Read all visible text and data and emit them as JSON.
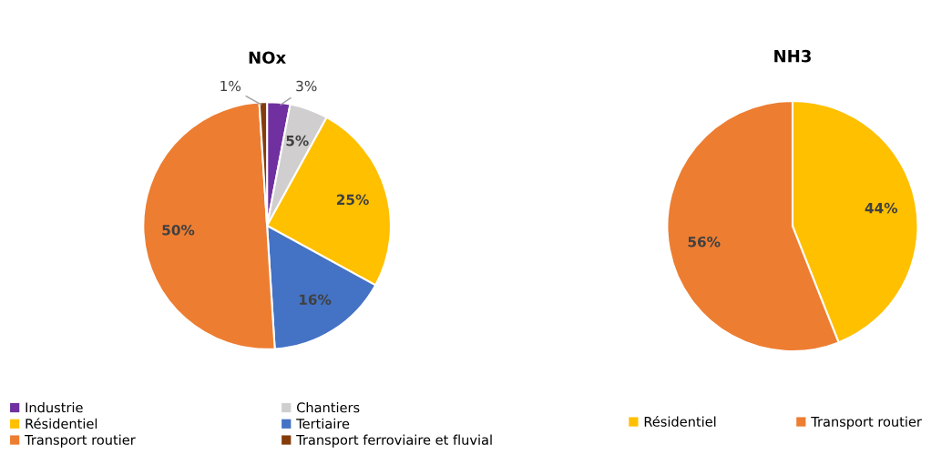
{
  "chart_data": [
    {
      "type": "pie",
      "title": "NOx",
      "categories": [
        "Industrie",
        "Chantiers",
        "Résidentiel",
        "Tertiaire",
        "Transport routier",
        "Transport ferroviaire et fluvial"
      ],
      "values": [
        3,
        5,
        25,
        16,
        50,
        1
      ],
      "colors": [
        "#7030a0",
        "#d0cece",
        "#ffc000",
        "#4472c4",
        "#ed7d31",
        "#843c0c"
      ],
      "value_labels": [
        "3%",
        "5%",
        "25%",
        "16%",
        "50%",
        "1%"
      ],
      "legend": "bottom"
    },
    {
      "type": "pie",
      "title": "NH3",
      "categories": [
        "Résidentiel",
        "Transport routier"
      ],
      "values": [
        44,
        56
      ],
      "colors": [
        "#ffc000",
        "#ed7d31"
      ],
      "value_labels": [
        "44%",
        "56%"
      ],
      "legend": "bottom"
    }
  ]
}
